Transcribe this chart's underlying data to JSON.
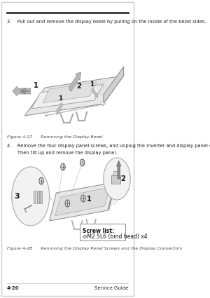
{
  "bg_color": "#ffffff",
  "border_color": "#1a1a1a",
  "step3_text": "3.    Pull out and remove the display bezel by pulling on the inside of the bezel sides.",
  "step4_line1": "4.    Remove the four display panel screws, and unplug the inverter and display panel connectors.",
  "step4_line2": "       Then tilt up and remove the display panel.",
  "fig427_caption": "Figure 4-27      Removing the Display Bezel",
  "fig428_caption": "Figure 4-28      Removing the Display Panel Screws and the Display Connectors",
  "screw_list_title": "Screw list:",
  "screw_list_item": "⊙M2.5L6 (bind head) x4",
  "page_num": "4-20",
  "page_label": "Service Guide",
  "text_color": "#222222",
  "caption_color": "#444444",
  "line_color": "#888888",
  "light_line": "#aaaaaa",
  "arrow_fill": "#bbbbbb"
}
